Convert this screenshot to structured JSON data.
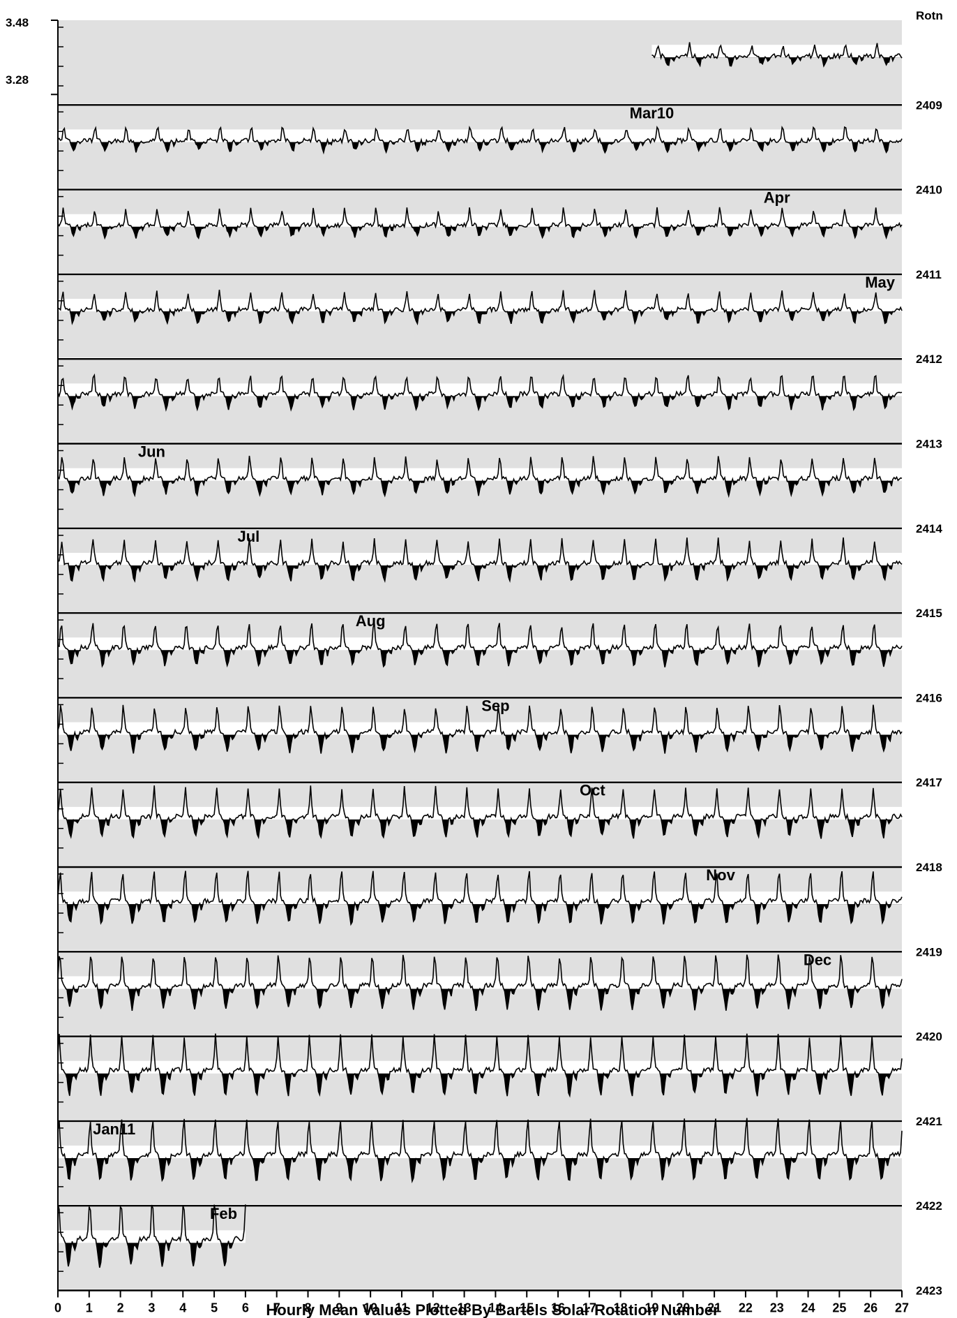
{
  "chart_data": {
    "type": "line",
    "title": "",
    "xlabel": "Hourly Mean Values Plotted By Bartels Solar Rotation Number",
    "ylabel": "",
    "x_ticks": [
      "0",
      "1",
      "2",
      "3",
      "4",
      "5",
      "6",
      "7",
      "8",
      "9",
      "10",
      "11",
      "12",
      "13",
      "14",
      "15",
      "16",
      "17",
      "18",
      "19",
      "20",
      "21",
      "22",
      "23",
      "24",
      "25",
      "26",
      "27"
    ],
    "xlim": [
      0,
      27
    ],
    "ylim": [
      3.28,
      3.48
    ],
    "y_ticks": [
      "3.48",
      "3.28"
    ],
    "y_baseline": 3.38,
    "right_header": "Rotn",
    "fill_below_baseline": true,
    "grid": false,
    "background_color": "#e0e0e0",
    "line_color": "#000000",
    "rotations": [
      {
        "rotation": "2409",
        "data_start_day": 19.0,
        "data_end_day": 27.0
      },
      {
        "rotation": "2410",
        "data_start_day": 0.0,
        "data_end_day": 27.0
      },
      {
        "rotation": "2411",
        "data_start_day": 0.0,
        "data_end_day": 27.0
      },
      {
        "rotation": "2412",
        "data_start_day": 0.0,
        "data_end_day": 27.0
      },
      {
        "rotation": "2413",
        "data_start_day": 0.0,
        "data_end_day": 27.0
      },
      {
        "rotation": "2414",
        "data_start_day": 0.0,
        "data_end_day": 27.0
      },
      {
        "rotation": "2415",
        "data_start_day": 0.0,
        "data_end_day": 27.0
      },
      {
        "rotation": "2416",
        "data_start_day": 0.0,
        "data_end_day": 27.0
      },
      {
        "rotation": "2417",
        "data_start_day": 0.0,
        "data_end_day": 27.0
      },
      {
        "rotation": "2418",
        "data_start_day": 0.0,
        "data_end_day": 27.0
      },
      {
        "rotation": "2419",
        "data_start_day": 0.0,
        "data_end_day": 27.0
      },
      {
        "rotation": "2420",
        "data_start_day": 0.0,
        "data_end_day": 27.0
      },
      {
        "rotation": "2421",
        "data_start_day": 0.0,
        "data_end_day": 27.0
      },
      {
        "rotation": "2422",
        "data_start_day": 0.0,
        "data_end_day": 27.0
      },
      {
        "rotation": "2423",
        "data_start_day": 0.0,
        "data_end_day": 6.0
      }
    ],
    "month_labels": [
      {
        "label": "Mar10",
        "rotation": "2410",
        "day": 19.0
      },
      {
        "label": "Apr",
        "rotation": "2411",
        "day": 23.0
      },
      {
        "label": "May",
        "rotation": "2412",
        "day": 26.3
      },
      {
        "label": "Jun",
        "rotation": "2414",
        "day": 3.0
      },
      {
        "label": "Jul",
        "rotation": "2415",
        "day": 6.1
      },
      {
        "label": "Aug",
        "rotation": "2416",
        "day": 10.0
      },
      {
        "label": "Sep",
        "rotation": "2417",
        "day": 14.0
      },
      {
        "label": "Oct",
        "rotation": "2418",
        "day": 17.1
      },
      {
        "label": "Nov",
        "rotation": "2419",
        "day": 21.2
      },
      {
        "label": "Dec",
        "rotation": "2420",
        "day": 24.3
      },
      {
        "label": "Jan11",
        "rotation": "2422",
        "day": 1.8
      },
      {
        "label": "Feb",
        "rotation": "2423",
        "day": 5.3
      }
    ]
  }
}
